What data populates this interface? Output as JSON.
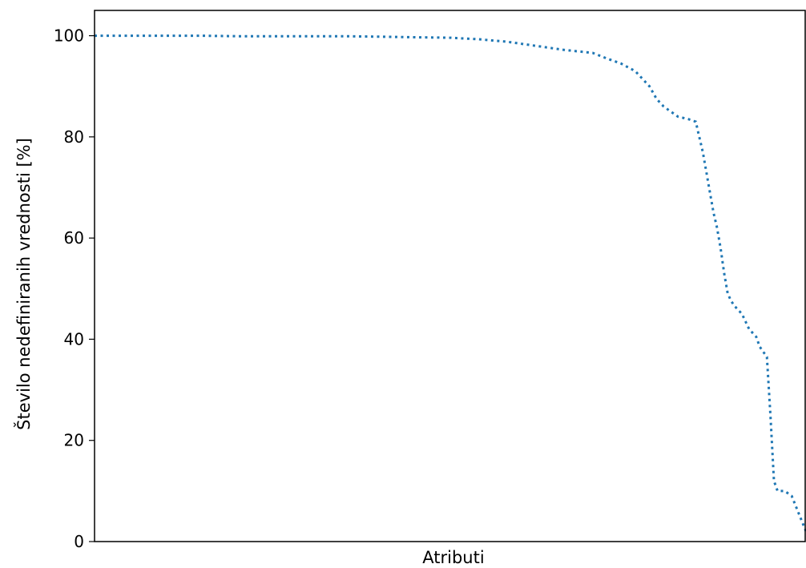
{
  "chart_data": {
    "type": "line",
    "title": "",
    "xlabel": "Atributi",
    "ylabel": "Število nedefiniranih vrednosti [%]",
    "xlim": [
      0,
      1
    ],
    "ylim": [
      0,
      105
    ],
    "yticks": [
      0,
      20,
      40,
      60,
      80,
      100
    ],
    "show_xticks": false,
    "grid": false,
    "legend": "none",
    "line_style": "dotted",
    "line_color": "#1f77b4",
    "series": [
      {
        "x": [
          0.0,
          0.05,
          0.1,
          0.15,
          0.2,
          0.25,
          0.3,
          0.35,
          0.4,
          0.45,
          0.5,
          0.54,
          0.58,
          0.62,
          0.66,
          0.7,
          0.72,
          0.74,
          0.76,
          0.78,
          0.79,
          0.8,
          0.81,
          0.82,
          0.835,
          0.845,
          0.85,
          0.855,
          0.86,
          0.865,
          0.87,
          0.875,
          0.88,
          0.885,
          0.89,
          0.895,
          0.9,
          0.91,
          0.92,
          0.93,
          0.935,
          0.94,
          0.945,
          0.95,
          0.955,
          0.96,
          0.97,
          0.975,
          0.98,
          1.0
        ],
        "y": [
          100,
          100,
          100,
          100,
          99.9,
          99.9,
          99.9,
          99.9,
          99.8,
          99.7,
          99.6,
          99.3,
          98.8,
          98.0,
          97.2,
          96.6,
          95.5,
          94.5,
          93.0,
          90.0,
          87.5,
          86.0,
          85.0,
          84.0,
          83.5,
          83.0,
          80.0,
          77.0,
          73.0,
          69.0,
          65.0,
          62.0,
          58.0,
          53.0,
          49.0,
          47.5,
          46.5,
          45.0,
          42.0,
          40.5,
          38.5,
          37.5,
          36.5,
          25.0,
          12.0,
          10.0,
          10.0,
          9.5,
          9.0,
          2.0
        ]
      }
    ]
  }
}
